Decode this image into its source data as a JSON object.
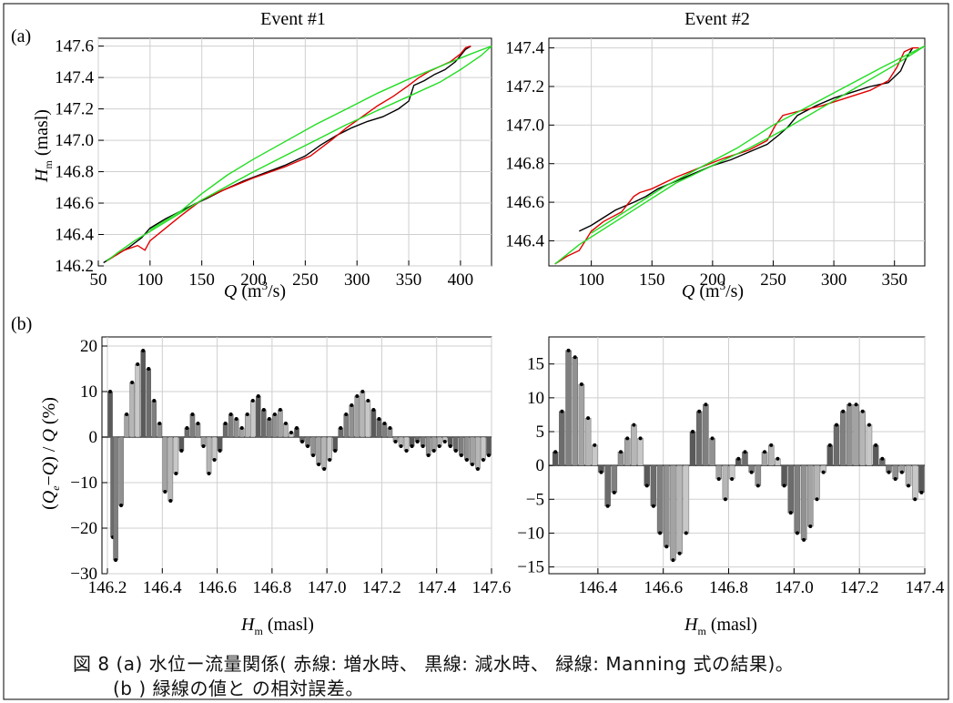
{
  "panel_labels": {
    "a": "(a)",
    "b": "(b)"
  },
  "caption": {
    "line1": "図 8 (a) 水位ー流量関係( 赤線: 増水時、 黒線: 減水時、 緑線: Manning 式の結果)。",
    "line2": "(b ) 緑線の値と の相対誤差。"
  },
  "colors": {
    "rising": "#e00000",
    "falling": "#000000",
    "manning": "#22dd22"
  },
  "chart_data": [
    {
      "type": "line",
      "title": "Event #1",
      "xlabel": "Q (m³/s)",
      "ylabel": "Hm (masl)",
      "xlim": [
        50,
        430
      ],
      "ylim": [
        146.2,
        147.65
      ],
      "x_ticks": [
        50,
        100,
        150,
        200,
        250,
        300,
        350,
        400
      ],
      "y_ticks": [
        146.2,
        146.4,
        146.6,
        146.8,
        147.0,
        147.2,
        147.4,
        147.6
      ],
      "grid": true,
      "series": [
        {
          "color": "black",
          "x": [
            55,
            62,
            70,
            80,
            92,
            100,
            115,
            130,
            145,
            155,
            170,
            190,
            210,
            230,
            250,
            265,
            280,
            295,
            310,
            325,
            340,
            350,
            355,
            365,
            375,
            385,
            395,
            405,
            410
          ],
          "y": [
            146.22,
            146.25,
            146.28,
            146.32,
            146.38,
            146.44,
            146.5,
            146.55,
            146.6,
            146.63,
            146.68,
            146.74,
            146.79,
            146.84,
            146.9,
            146.97,
            147.03,
            147.08,
            147.12,
            147.15,
            147.2,
            147.25,
            147.35,
            147.38,
            147.42,
            147.45,
            147.5,
            147.58,
            147.6
          ]
        },
        {
          "color": "red",
          "x": [
            58,
            65,
            75,
            88,
            95,
            100,
            115,
            130,
            150,
            170,
            200,
            230,
            255,
            275,
            290,
            305,
            320,
            335,
            350,
            360,
            370,
            380,
            390,
            400,
            405,
            410
          ],
          "y": [
            146.23,
            146.26,
            146.3,
            146.33,
            146.3,
            146.36,
            146.44,
            146.52,
            146.62,
            146.68,
            146.76,
            146.83,
            146.9,
            147.0,
            147.08,
            147.15,
            147.22,
            147.28,
            147.35,
            147.4,
            147.44,
            147.47,
            147.5,
            147.55,
            147.59,
            147.6
          ]
        },
        {
          "color": "green",
          "x": [
            58,
            70,
            85,
            100,
            120,
            150,
            175,
            200,
            230,
            260,
            290,
            320,
            350,
            380,
            400,
            420,
            430
          ],
          "y": [
            146.23,
            146.29,
            146.36,
            146.42,
            146.5,
            146.62,
            146.71,
            146.8,
            146.9,
            147.0,
            147.1,
            147.19,
            147.28,
            147.37,
            147.45,
            147.54,
            147.6
          ]
        },
        {
          "color": "green",
          "x": [
            100,
            130,
            150,
            175,
            200,
            230,
            260,
            290,
            320,
            350,
            380,
            410,
            430
          ],
          "y": [
            146.43,
            146.55,
            146.66,
            146.78,
            146.88,
            146.99,
            147.1,
            147.2,
            147.3,
            147.39,
            147.47,
            147.55,
            147.6
          ]
        }
      ]
    },
    {
      "type": "line",
      "title": "Event #2",
      "xlabel": "Q (m³/s)",
      "ylabel": "",
      "xlim": [
        65,
        375
      ],
      "ylim": [
        146.27,
        147.45
      ],
      "x_ticks": [
        100,
        150,
        200,
        250,
        300,
        350
      ],
      "y_ticks": [
        146.4,
        146.6,
        146.8,
        147.0,
        147.2,
        147.4
      ],
      "grid": true,
      "series": [
        {
          "color": "black",
          "x": [
            90,
            100,
            110,
            120,
            135,
            145,
            155,
            170,
            185,
            200,
            215,
            230,
            245,
            255,
            262,
            270,
            285,
            300,
            315,
            330,
            345,
            355,
            360,
            365
          ],
          "y": [
            146.45,
            146.48,
            146.52,
            146.56,
            146.6,
            146.63,
            146.67,
            146.71,
            146.75,
            146.79,
            146.82,
            146.86,
            146.9,
            146.95,
            146.99,
            147.05,
            147.1,
            147.14,
            147.17,
            147.2,
            147.22,
            147.28,
            147.35,
            147.4
          ]
        },
        {
          "color": "red",
          "x": [
            70,
            80,
            90,
            95,
            100,
            110,
            125,
            135,
            140,
            150,
            170,
            190,
            210,
            230,
            245,
            252,
            258,
            270,
            290,
            310,
            330,
            345,
            352,
            358,
            365,
            370
          ],
          "y": [
            146.28,
            146.32,
            146.35,
            146.4,
            146.45,
            146.5,
            146.55,
            146.63,
            146.65,
            146.67,
            146.73,
            146.78,
            146.83,
            146.87,
            146.92,
            147.0,
            147.05,
            147.07,
            147.1,
            147.14,
            147.18,
            147.23,
            147.3,
            147.38,
            147.4,
            147.4
          ]
        },
        {
          "color": "green",
          "x": [
            70,
            90,
            110,
            130,
            150,
            170,
            200,
            230,
            260,
            290,
            320,
            350,
            375
          ],
          "y": [
            146.28,
            146.38,
            146.46,
            146.54,
            146.62,
            146.7,
            146.79,
            146.88,
            146.98,
            147.09,
            147.2,
            147.31,
            147.41
          ]
        },
        {
          "color": "green",
          "x": [
            100,
            120,
            140,
            160,
            190,
            220,
            250,
            280,
            310,
            340,
            375
          ],
          "y": [
            146.44,
            146.52,
            146.6,
            146.68,
            146.78,
            146.88,
            147.0,
            147.1,
            147.2,
            147.3,
            147.41
          ]
        }
      ]
    },
    {
      "type": "bar",
      "title": "",
      "xlabel": "Hm (masl)",
      "ylabel": "(Qe−Q) / Q (%)",
      "xlim": [
        146.18,
        147.6
      ],
      "ylim": [
        -30,
        22
      ],
      "x_ticks": [
        146.2,
        146.4,
        146.6,
        146.8,
        147.0,
        147.2,
        147.4,
        147.6
      ],
      "y_ticks": [
        -30,
        -20,
        -10,
        0,
        10,
        20
      ],
      "grid": true,
      "x": [
        146.21,
        146.22,
        146.23,
        146.25,
        146.27,
        146.29,
        146.31,
        146.33,
        146.35,
        146.37,
        146.39,
        146.41,
        146.43,
        146.45,
        146.47,
        146.49,
        146.51,
        146.53,
        146.55,
        146.57,
        146.59,
        146.61,
        146.63,
        146.65,
        146.67,
        146.69,
        146.71,
        146.73,
        146.75,
        146.77,
        146.79,
        146.81,
        146.83,
        146.85,
        146.87,
        146.89,
        146.91,
        146.93,
        146.95,
        146.97,
        146.99,
        147.01,
        147.03,
        147.05,
        147.07,
        147.09,
        147.11,
        147.13,
        147.15,
        147.17,
        147.19,
        147.21,
        147.23,
        147.25,
        147.27,
        147.29,
        147.31,
        147.33,
        147.35,
        147.37,
        147.39,
        147.41,
        147.43,
        147.45,
        147.47,
        147.49,
        147.51,
        147.53,
        147.55,
        147.57,
        147.59
      ],
      "values": [
        10,
        -22,
        -27,
        -15,
        5,
        12,
        16,
        19,
        15,
        8,
        3,
        -12,
        -14,
        -8,
        -3,
        2,
        5,
        3,
        -2,
        -8,
        -5,
        -3,
        3,
        5,
        4,
        2,
        5,
        8,
        9,
        6,
        4,
        5,
        6,
        3,
        1,
        2,
        -1,
        -2,
        -4,
        -6,
        -7,
        -5,
        -3,
        2,
        5,
        7,
        9,
        10,
        8,
        6,
        4,
        3,
        2,
        -1,
        -2,
        -3,
        -2,
        -1,
        -2,
        -4,
        -3,
        -2,
        -1,
        -2,
        -3,
        -4,
        -5,
        -6,
        -7,
        -5,
        -4
      ]
    },
    {
      "type": "bar",
      "title": "",
      "xlabel": "Hm (masl)",
      "ylabel": "",
      "xlim": [
        146.25,
        147.4
      ],
      "ylim": [
        -16,
        19
      ],
      "x_ticks": [
        146.4,
        146.6,
        146.8,
        147.0,
        147.2,
        147.4
      ],
      "y_ticks": [
        -15,
        -10,
        -5,
        0,
        5,
        10,
        15
      ],
      "grid": true,
      "x": [
        146.27,
        146.29,
        146.31,
        146.33,
        146.35,
        146.37,
        146.39,
        146.41,
        146.43,
        146.45,
        146.47,
        146.49,
        146.51,
        146.53,
        146.55,
        146.57,
        146.59,
        146.61,
        146.63,
        146.65,
        146.67,
        146.69,
        146.71,
        146.73,
        146.75,
        146.77,
        146.79,
        146.81,
        146.83,
        146.85,
        146.87,
        146.89,
        146.91,
        146.93,
        146.95,
        146.97,
        146.99,
        147.01,
        147.03,
        147.05,
        147.07,
        147.09,
        147.11,
        147.13,
        147.15,
        147.17,
        147.19,
        147.21,
        147.23,
        147.25,
        147.27,
        147.29,
        147.31,
        147.33,
        147.35,
        147.37,
        147.39
      ],
      "values": [
        2,
        8,
        17,
        16,
        12,
        7,
        3,
        -1,
        -6,
        -4,
        2,
        4,
        6,
        4,
        -3,
        -6,
        -10,
        -12,
        -14,
        -13,
        -10,
        5,
        8,
        9,
        4,
        -2,
        -5,
        -2,
        1,
        2,
        -1,
        -3,
        2,
        3,
        1,
        -3,
        -7,
        -10,
        -11,
        -9,
        -5,
        -1,
        3,
        6,
        8,
        9,
        9,
        8,
        6,
        3,
        1,
        -1,
        -2,
        -1,
        -3,
        -5,
        -4
      ]
    }
  ]
}
